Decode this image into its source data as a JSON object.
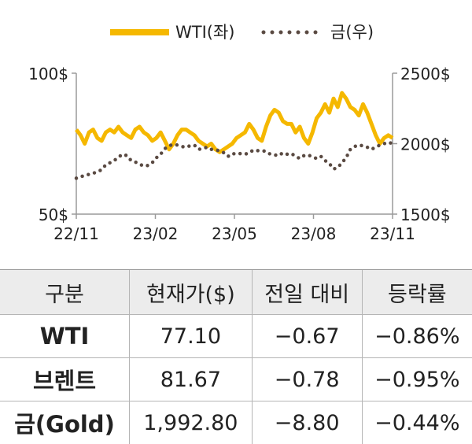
{
  "chart_data": {
    "type": "line",
    "legend": {
      "placement": "top-center"
    },
    "x_ticks": [
      "22/11",
      "23/02",
      "23/05",
      "23/08",
      "23/11"
    ],
    "y_left": {
      "ticks": [
        "100$",
        "50$"
      ],
      "range": [
        50,
        100
      ]
    },
    "y_right": {
      "ticks": [
        "2500$",
        "2000$",
        "1500$"
      ],
      "range": [
        1500,
        2500
      ]
    },
    "grid": false,
    "colors": {
      "wti": "#f5b800",
      "gold": "#5a4a42"
    },
    "series": [
      {
        "name": "WTI(좌)",
        "axis": "left",
        "style": "solid",
        "values": [
          80,
          78,
          75,
          79,
          80,
          77,
          76,
          79,
          80,
          79,
          81,
          79,
          78,
          77,
          80,
          81,
          79,
          78,
          76,
          77,
          79,
          76,
          73,
          75,
          78,
          80,
          80,
          79,
          78,
          76,
          75,
          74,
          75,
          73,
          72,
          73,
          74,
          75,
          77,
          78,
          79,
          82,
          80,
          77,
          76,
          81,
          85,
          87,
          86,
          83,
          82,
          82,
          79,
          81,
          77,
          75,
          79,
          84,
          86,
          89,
          86,
          91,
          88,
          93,
          91,
          88,
          87,
          85,
          89,
          86,
          82,
          78,
          75,
          77,
          78,
          77
        ]
      },
      {
        "name": "금(우)",
        "axis": "right",
        "style": "dotted",
        "values": [
          1755,
          1765,
          1775,
          1782,
          1790,
          1800,
          1815,
          1850,
          1865,
          1880,
          1905,
          1925,
          1915,
          1880,
          1870,
          1855,
          1840,
          1845,
          1865,
          1900,
          1925,
          1965,
          1985,
          1995,
          1990,
          1980,
          1975,
          1985,
          1990,
          1960,
          1965,
          1975,
          1960,
          1955,
          1950,
          1935,
          1910,
          1930,
          1925,
          1930,
          1925,
          1935,
          1955,
          1950,
          1950,
          1945,
          1925,
          1920,
          1915,
          1935,
          1925,
          1930,
          1910,
          1895,
          1915,
          1920,
          1905,
          1895,
          1910,
          1880,
          1860,
          1820,
          1830,
          1865,
          1900,
          1960,
          1980,
          1990,
          1985,
          1975,
          1960,
          1975,
          1990,
          2000,
          2010,
          2000
        ]
      }
    ]
  },
  "table": {
    "headers": [
      "구분",
      "현재가($)",
      "전일 대비",
      "등락률"
    ],
    "rows": [
      {
        "name": "WTI",
        "price": "77.10",
        "change": "−0.67",
        "rate": "−0.86%"
      },
      {
        "name": "브렌트",
        "price": "81.67",
        "change": "−0.78",
        "rate": "−0.95%"
      },
      {
        "name": "금(Gold)",
        "price": "1,992.80",
        "change": "−8.80",
        "rate": "−0.44%"
      }
    ]
  }
}
